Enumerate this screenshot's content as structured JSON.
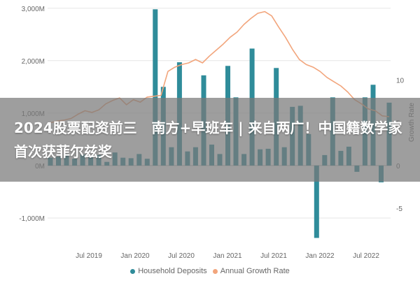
{
  "banner": {
    "title": "2024股票配资前三   南方+早班车 | 来自两广！中国籍数学家首次获菲尔兹奖"
  },
  "colors": {
    "bars": "#2f8c9a",
    "line": "#f2a57c",
    "grid": "#e6e6e6",
    "zero_line": "#bdbdbd",
    "tick_text": "#666666",
    "banner_bg": "#777777"
  },
  "chart_data": {
    "type": "bar",
    "combo": "bar+line",
    "x_ticks": [
      "Jul 2019",
      "Jan 2020",
      "Jul 2020",
      "Jan 2021",
      "Jul 2021",
      "Jan 2022",
      "Jul 2022"
    ],
    "y_left": {
      "ticks": [
        "3,000M",
        "2,000M",
        "1,000M",
        "0M",
        "-1,000M"
      ],
      "lim": [
        -1400,
        3050
      ]
    },
    "y_right": {
      "label": "Growth Rate",
      "ticks": [
        "10",
        "5",
        "0",
        "-5"
      ],
      "lim": [
        -8.6,
        18.7
      ]
    },
    "series": [
      {
        "name": "Household Deposits",
        "kind": "bar",
        "axis": "left",
        "values": [
          150,
          170,
          220,
          130,
          210,
          160,
          200,
          70,
          250,
          150,
          140,
          220,
          130,
          2980,
          1500,
          350,
          1970,
          270,
          350,
          1720,
          400,
          220,
          1900,
          1300,
          220,
          2230,
          310,
          320,
          1860,
          350,
          1120,
          1140,
          600,
          -1380,
          200,
          1300,
          280,
          360,
          -120,
          1300,
          1540,
          -320,
          1200
        ]
      },
      {
        "name": "Annual Growth Rate",
        "kind": "line",
        "axis": "right",
        "values": [
          5.0,
          5.2,
          5.3,
          5.5,
          6.0,
          6.4,
          6.2,
          6.5,
          7.2,
          7.6,
          7.9,
          7.1,
          7.7,
          7.4,
          8.0,
          8.1,
          8.2,
          11.0,
          11.5,
          11.8,
          12.0,
          12.4,
          12.0,
          12.8,
          13.5,
          14.2,
          15.0,
          15.6,
          16.5,
          17.2,
          17.8,
          18.0,
          17.5,
          16.2,
          15.0,
          13.6,
          12.4,
          11.8,
          11.5,
          11.0,
          10.3,
          9.8,
          9.3,
          8.6,
          7.7,
          7.2,
          6.6,
          6.4,
          5.8,
          5.7
        ]
      }
    ],
    "legend": {
      "position": "bottom",
      "items": [
        "Household Deposits",
        "Annual Growth Rate"
      ]
    },
    "grid": true
  }
}
